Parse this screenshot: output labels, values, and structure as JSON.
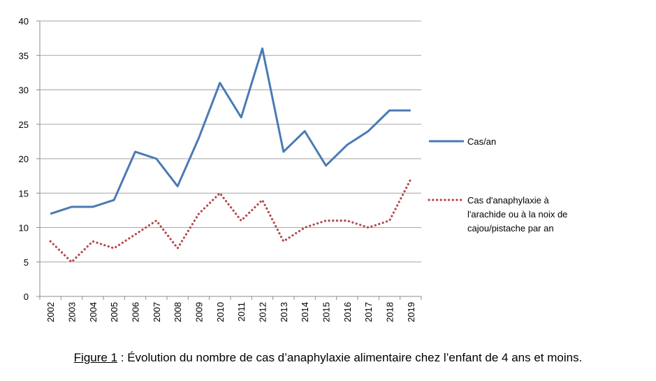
{
  "chart_data": {
    "type": "line",
    "categories": [
      "2002",
      "2003",
      "2004",
      "2005",
      "2006",
      "2007",
      "2008",
      "2009",
      "2010",
      "2011",
      "2012",
      "2013",
      "2014",
      "2015",
      "2016",
      "2017",
      "2018",
      "2019"
    ],
    "series": [
      {
        "name": "Cas/an",
        "values": [
          12,
          13,
          13,
          14,
          21,
          20,
          16,
          23,
          31,
          26,
          36,
          21,
          24,
          19,
          22,
          24,
          27,
          27
        ],
        "color": "#4a7ab4",
        "style": "solid"
      },
      {
        "name": "Cas d'anaphylaxie à l'arachide ou à la noix de cajou/pistache par an",
        "name_lines": [
          "Cas d'anaphylaxie à",
          "l'arachide ou à la noix de",
          "cajou/pistache par an"
        ],
        "values": [
          8,
          5,
          8,
          7,
          9,
          11,
          7,
          12,
          15,
          11,
          14,
          8,
          10,
          11,
          11,
          10,
          11,
          17
        ],
        "color": "#b4474a",
        "style": "dotted"
      }
    ],
    "yticks": [
      "0",
      "5",
      "10",
      "15",
      "20",
      "25",
      "30",
      "35",
      "40"
    ],
    "ylim": [
      0,
      40
    ],
    "grid": true,
    "legend_position": "right",
    "xlabel": "",
    "ylabel": ""
  },
  "caption": {
    "prefix": "Figure 1",
    "text": " : Évolution du nombre de cas d’anaphylaxie alimentaire chez l’enfant de 4 ans et moins."
  }
}
